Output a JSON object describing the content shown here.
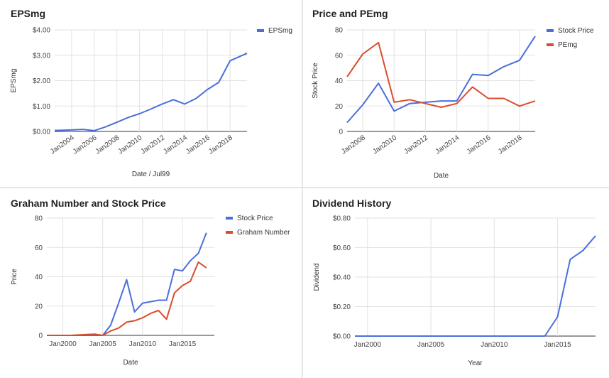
{
  "chart_data": [
    {
      "id": "epsmg",
      "type": "line",
      "title": "EPSmg",
      "xlabel": "Date / Jul99",
      "ylabel": "EPSmg",
      "x_tick_labels": [
        "Jan2004",
        "Jan2006",
        "Jan2008",
        "Jan2010",
        "Jan2012",
        "Jan2014",
        "Jan2016",
        "Jan2018"
      ],
      "x_tick_values": [
        2004,
        2006,
        2008,
        2010,
        2012,
        2014,
        2016,
        2018
      ],
      "xlim": [
        2002.5,
        2019.5
      ],
      "y_ticks": [
        0,
        1,
        2,
        3,
        4
      ],
      "y_tick_labels": [
        "$0.00",
        "$1.00",
        "$2.00",
        "$3.00",
        "$4.00"
      ],
      "ylim": [
        0,
        4
      ],
      "legend_position": "top-right",
      "grid": true,
      "series": [
        {
          "name": "EPSmg",
          "color": "#4a6fdb",
          "x": [
            2002.5,
            2004,
            2005,
            2006,
            2007,
            2008,
            2009,
            2010,
            2011,
            2012,
            2013,
            2014,
            2015,
            2016,
            2017,
            2018,
            2019.5
          ],
          "values": [
            0.04,
            0.06,
            0.08,
            0.03,
            0.18,
            0.36,
            0.55,
            0.7,
            0.88,
            1.08,
            1.25,
            1.08,
            1.3,
            1.65,
            1.93,
            2.78,
            3.08
          ]
        }
      ]
    },
    {
      "id": "price-pemg",
      "type": "line",
      "title": "Price and PEmg",
      "xlabel": "Date",
      "ylabel": "Stock Price",
      "x_tick_labels": [
        "Jan2008",
        "Jan2010",
        "Jan2012",
        "Jan2014",
        "Jan2016",
        "Jan2018"
      ],
      "x_tick_values": [
        2008,
        2010,
        2012,
        2014,
        2016,
        2018
      ],
      "xlim": [
        2007,
        2019
      ],
      "y_ticks": [
        0,
        20,
        40,
        60,
        80
      ],
      "y_tick_labels": [
        "0",
        "20",
        "40",
        "60",
        "80"
      ],
      "ylim": [
        0,
        80
      ],
      "legend_position": "top-right",
      "grid": true,
      "series": [
        {
          "name": "Stock Price",
          "color": "#4a6fdb",
          "x": [
            2007,
            2008,
            2009,
            2010,
            2011,
            2012,
            2013,
            2014,
            2015,
            2016,
            2017,
            2018,
            2019
          ],
          "values": [
            7,
            21,
            38,
            16,
            22,
            23,
            24,
            24,
            45,
            44,
            51,
            56,
            75
          ]
        },
        {
          "name": "PEmg",
          "color": "#dc4b2c",
          "x": [
            2007,
            2008,
            2009,
            2010,
            2011,
            2012,
            2013,
            2014,
            2015,
            2016,
            2017,
            2018,
            2019
          ],
          "values": [
            43,
            61,
            70,
            23,
            25,
            22,
            19,
            22,
            35,
            26,
            26,
            20,
            24
          ]
        }
      ]
    },
    {
      "id": "graham",
      "type": "line",
      "title": "Graham Number and Stock Price",
      "xlabel": "Date",
      "ylabel": "Price",
      "x_tick_labels": [
        "Jan2000",
        "Jan2005",
        "Jan2010",
        "Jan2015"
      ],
      "x_tick_values": [
        2000,
        2005,
        2010,
        2015
      ],
      "xlim": [
        1998,
        2019
      ],
      "y_ticks": [
        0,
        20,
        40,
        60,
        80
      ],
      "y_tick_labels": [
        "0",
        "20",
        "40",
        "60",
        "80"
      ],
      "ylim": [
        0,
        80
      ],
      "legend_position": "top-right",
      "grid": true,
      "series": [
        {
          "name": "Stock Price",
          "color": "#4a6fdb",
          "x": [
            1998,
            1999,
            2000,
            2001,
            2002,
            2003,
            2004,
            2005,
            2006,
            2007,
            2008,
            2009,
            2010,
            2011,
            2012,
            2013,
            2014,
            2015,
            2016,
            2017,
            2018
          ],
          "values": [
            0,
            0,
            0,
            0,
            0,
            0,
            0,
            0,
            7,
            22,
            38,
            16,
            22,
            23,
            24,
            24,
            45,
            44,
            51,
            56,
            70
          ]
        },
        {
          "name": "Graham Number",
          "color": "#dc4b2c",
          "x": [
            1998,
            1999,
            2000,
            2001,
            2002,
            2003,
            2004,
            2005,
            2006,
            2007,
            2008,
            2009,
            2010,
            2011,
            2012,
            2013,
            2014,
            2015,
            2016,
            2017,
            2018
          ],
          "values": [
            0,
            0,
            0,
            0,
            0.3,
            0.6,
            0.8,
            0,
            3,
            5,
            9,
            10,
            12,
            15,
            17,
            11,
            29,
            34,
            37,
            50,
            46
          ]
        }
      ]
    },
    {
      "id": "dividend",
      "type": "line",
      "title": "Dividend History",
      "xlabel": "Year",
      "ylabel": "Dividend",
      "x_tick_labels": [
        "Jan2000",
        "Jan2005",
        "Jan2010",
        "Jan2015"
      ],
      "x_tick_values": [
        2000,
        2005,
        2010,
        2015
      ],
      "xlim": [
        1999,
        2018
      ],
      "y_ticks": [
        0,
        0.2,
        0.4,
        0.6,
        0.8
      ],
      "y_tick_labels": [
        "$0.00",
        "$0.20",
        "$0.40",
        "$0.60",
        "$0.80"
      ],
      "ylim": [
        0,
        0.8
      ],
      "legend_position": "none",
      "grid": true,
      "series": [
        {
          "name": "",
          "color": "#4a6fdb",
          "x": [
            1999,
            2000,
            2001,
            2002,
            2003,
            2004,
            2005,
            2006,
            2007,
            2008,
            2009,
            2010,
            2011,
            2012,
            2013,
            2014,
            2015,
            2016,
            2017,
            2018
          ],
          "values": [
            0,
            0,
            0,
            0,
            0,
            0,
            0,
            0,
            0,
            0,
            0,
            0,
            0,
            0,
            0,
            0,
            0.13,
            0.52,
            0.58,
            0.68
          ]
        }
      ]
    }
  ]
}
